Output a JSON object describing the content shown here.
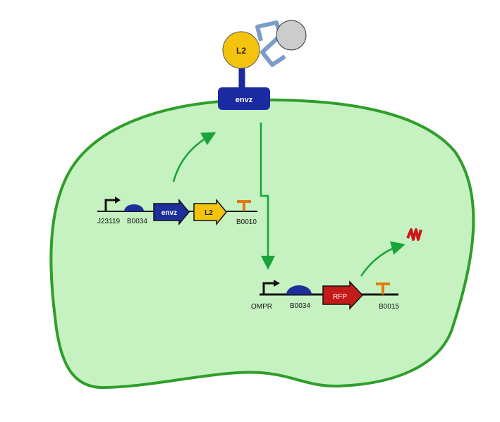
{
  "colors": {
    "cell_fill": "#c5f2c0",
    "cell_stroke": "#2f9e2a",
    "arrow_green": "#1aa33a",
    "receptor": "#1a2aa0",
    "ligand": "#f4c30e",
    "linker": "#7a9cc6",
    "partner": "#cccccc",
    "rbs": "#1d2f9a",
    "terminator": "#e07a10",
    "rfp": "#c41a1a",
    "rfp_product": "#cc1818"
  },
  "icons": [
    "promoter-arrow-icon",
    "rbs-dome-icon",
    "terminator-t-icon",
    "rfp-protein-squiggle-icon"
  ],
  "receptor": {
    "ligand_label": "L2",
    "membrane_protein_label": "envz"
  },
  "construct1": {
    "promoter_label": "J23119",
    "rbs_label": "B0034",
    "gene1_label": "envz",
    "gene2_label": "L2",
    "terminator_label": "B0010"
  },
  "construct2": {
    "promoter_label": "OMPR",
    "rbs_label": "B0034",
    "gene_label": "RFP",
    "terminator_label": "B0015"
  }
}
